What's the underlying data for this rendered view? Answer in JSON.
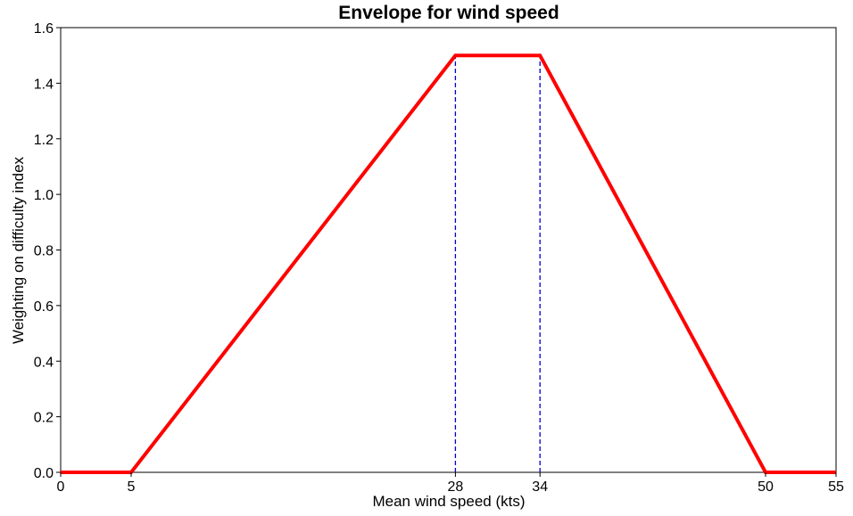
{
  "chart_data": {
    "type": "line",
    "title": "Envelope for wind speed",
    "xlabel": "Mean wind speed (kts)",
    "ylabel": "Weighting on difficulty index",
    "xlim": [
      0,
      55
    ],
    "ylim": [
      0,
      1.6
    ],
    "xticks": [
      0,
      5,
      28,
      34,
      50,
      55
    ],
    "yticks": [
      0.0,
      0.2,
      0.4,
      0.6,
      0.8,
      1.0,
      1.2,
      1.4,
      1.6
    ],
    "ytick_labels": [
      "0.0",
      "0.2",
      "0.4",
      "0.6",
      "0.8",
      "1.0",
      "1.2",
      "1.4",
      "1.6"
    ],
    "grid": false,
    "series": [
      {
        "x": [
          0,
          5,
          28,
          34,
          50,
          55
        ],
        "y": [
          0,
          0,
          1.5,
          1.5,
          0,
          0
        ],
        "color": "#ff0000",
        "style": "solid"
      }
    ],
    "vlines": [
      {
        "x": 28,
        "y_max": 1.5,
        "color": "#0000cc",
        "style": "dashed"
      },
      {
        "x": 34,
        "y_max": 1.5,
        "color": "#0000cc",
        "style": "dashed"
      }
    ]
  }
}
